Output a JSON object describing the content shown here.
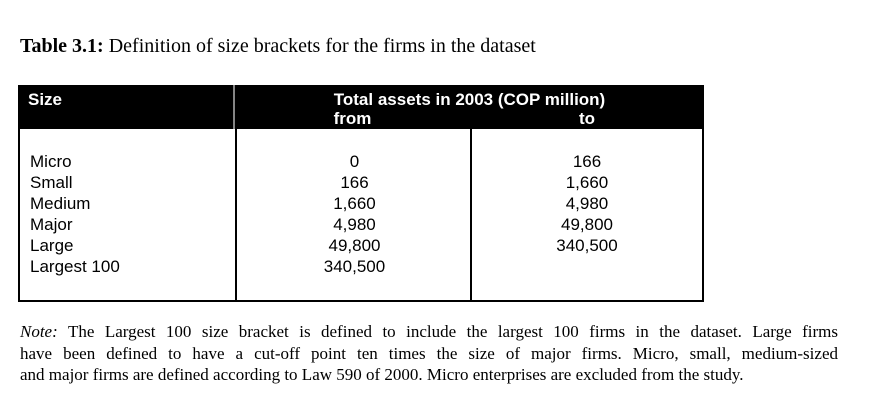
{
  "caption": {
    "label": "Table 3.1:",
    "text": "Definition of size brackets for the firms in the dataset"
  },
  "table": {
    "header": {
      "size_col": "Size",
      "group_label": "Total assets in 2003 (COP million)",
      "from_col": "from",
      "to_col": "to"
    },
    "rows": [
      {
        "size": "Micro",
        "from": "0",
        "to": "166"
      },
      {
        "size": "Small",
        "from": "166",
        "to": "1,660"
      },
      {
        "size": "Medium",
        "from": "1,660",
        "to": "4,980"
      },
      {
        "size": "Major",
        "from": "4,980",
        "to": "49,800"
      },
      {
        "size": "Large",
        "from": "49,800",
        "to": "340,500"
      },
      {
        "size": "Largest 100",
        "from": "340,500",
        "to": ""
      }
    ]
  },
  "note": {
    "label": "Note:",
    "line1": "The Largest 100 size bracket is defined to include the largest 100 firms in the dataset.  Large firms",
    "line2": "have been defined to have a cut-off point ten times the size of major firms.  Micro, small, medium-sized",
    "line3": "and major firms are defined according to Law 590 of 2000.  Micro enterprises are excluded from the study."
  },
  "colors": {
    "header_bg": "#000000",
    "header_text": "#ffffff",
    "header_divider": "#858585",
    "border": "#000000"
  }
}
